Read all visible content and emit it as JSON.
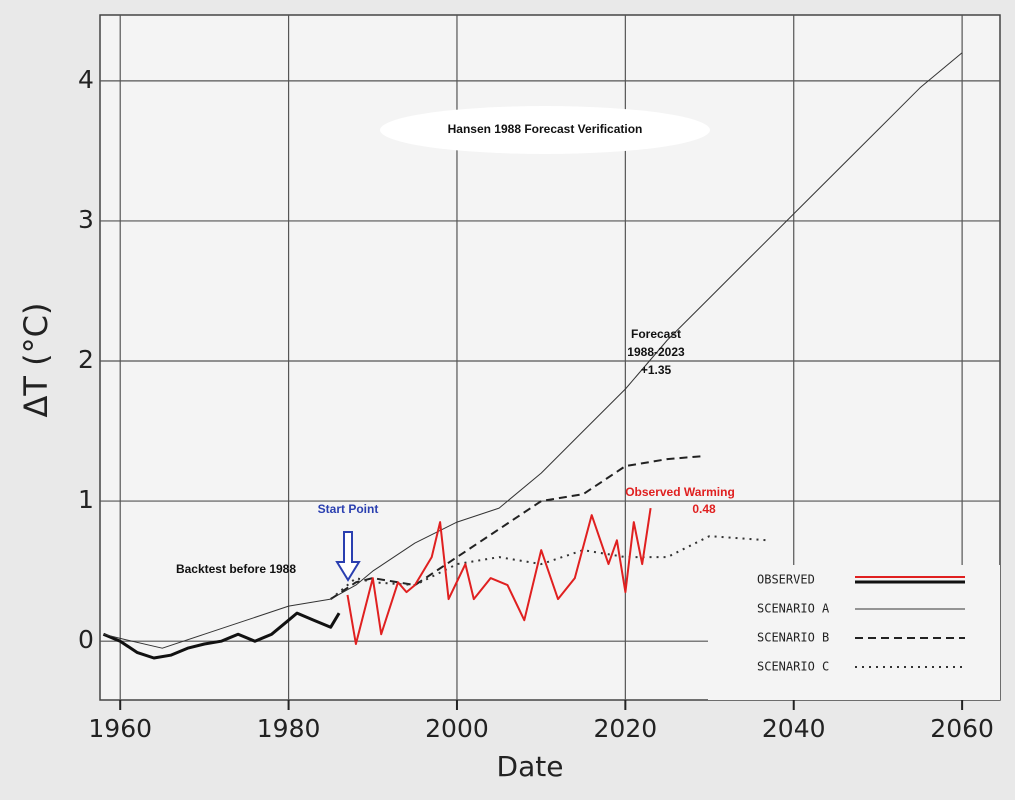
{
  "chart_data": {
    "type": "line",
    "title": "Hansen 1988 Forecast Verification",
    "x_label": "Date",
    "y_label": "ΔT (°C)",
    "xlim": [
      1957.6,
      2064.5
    ],
    "ylim": [
      -0.42,
      4.47
    ],
    "xticks": [
      1960,
      1980,
      2000,
      2020,
      2040,
      2060
    ],
    "yticks": [
      0,
      1,
      2,
      3,
      4
    ],
    "grid": true,
    "legend_position": "lower right",
    "annotations": [
      "Start Point",
      "Backtest before 1988",
      "Forecast",
      "1988-2023",
      "+1.35",
      "0.48"
    ],
    "series": [
      {
        "name": "OBSERVED",
        "color": "#111111",
        "style": "solid",
        "width": 3,
        "x": [
          1958,
          1960,
          1962,
          1964,
          1966,
          1968,
          1970,
          1972,
          1974,
          1976,
          1978,
          1980,
          1981,
          1983,
          1985,
          1986
        ],
        "values": [
          0.05,
          0.0,
          -0.08,
          -0.12,
          -0.1,
          -0.05,
          -0.02,
          0.0,
          0.05,
          0.0,
          0.05,
          0.15,
          0.2,
          0.15,
          0.1,
          0.2
        ]
      },
      {
        "name": "SCENARIO A",
        "color": "#333333",
        "style": "solid",
        "width": 1,
        "x": [
          1958,
          1960,
          1965,
          1970,
          1975,
          1980,
          1985,
          1988,
          1990,
          1995,
          2000,
          2005,
          2010,
          2015,
          2020,
          2025,
          2030,
          2035,
          2040,
          2045,
          2050,
          2055,
          2060
        ],
        "values": [
          0.05,
          0.02,
          -0.05,
          0.05,
          0.15,
          0.25,
          0.3,
          0.4,
          0.5,
          0.7,
          0.85,
          0.95,
          1.2,
          1.5,
          1.8,
          2.15,
          2.45,
          2.75,
          3.05,
          3.35,
          3.65,
          3.95,
          4.2
        ]
      },
      {
        "name": "SCENARIO B",
        "color": "#222222",
        "style": "dashed",
        "width": 2,
        "x": [
          1985,
          1988,
          1990,
          1995,
          2000,
          2005,
          2010,
          2015,
          2020,
          2025,
          2029
        ],
        "values": [
          0.3,
          0.42,
          0.45,
          0.4,
          0.6,
          0.8,
          1.0,
          1.05,
          1.25,
          1.3,
          1.32
        ]
      },
      {
        "name": "SCENARIO C",
        "color": "#333333",
        "style": "dotted",
        "width": 2,
        "x": [
          1985,
          1988,
          1990,
          1995,
          2000,
          2005,
          2010,
          2015,
          2020,
          2025,
          2030,
          2037
        ],
        "values": [
          0.3,
          0.45,
          0.42,
          0.4,
          0.55,
          0.6,
          0.55,
          0.65,
          0.6,
          0.6,
          0.75,
          0.72
        ]
      },
      {
        "name": "Observed Warming",
        "color": "#e02020",
        "style": "solid",
        "width": 2,
        "x": [
          1987,
          1988,
          1990,
          1991,
          1993,
          1994,
          1995,
          1997,
          1998,
          1999,
          2001,
          2002,
          2004,
          2006,
          2008,
          2010,
          2012,
          2014,
          2016,
          2018,
          2019,
          2020,
          2021,
          2022,
          2023
        ],
        "values": [
          0.33,
          -0.02,
          0.45,
          0.05,
          0.42,
          0.35,
          0.4,
          0.6,
          0.85,
          0.3,
          0.55,
          0.3,
          0.45,
          0.4,
          0.15,
          0.65,
          0.3,
          0.45,
          0.9,
          0.55,
          0.72,
          0.35,
          0.85,
          0.55,
          0.95
        ]
      }
    ]
  }
}
